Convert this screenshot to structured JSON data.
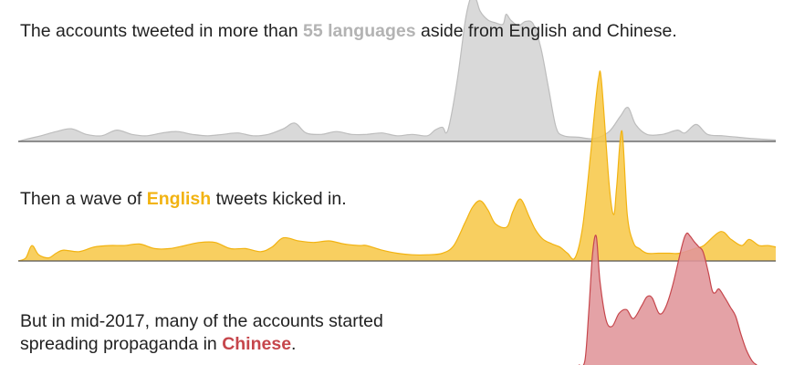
{
  "captions": {
    "other": {
      "pre": "The accounts tweeted in more than ",
      "highlight": "55 languages",
      "post": " aside from English and Chinese.",
      "color": "#b3b3b3"
    },
    "english": {
      "pre": "Then a wave of ",
      "highlight": "English",
      "post": " tweets kicked in.",
      "color": "#f2b311"
    },
    "chinese": {
      "line1": "But in mid-2017, many of the accounts started",
      "pre": "spreading propaganda in ",
      "highlight": "Chinese",
      "post": ".",
      "color": "#c6464c"
    }
  },
  "chart_data": {
    "type": "area",
    "x_range": [
      0,
      100
    ],
    "series": [
      {
        "key": "other",
        "fill": "#d9d9d9",
        "stroke": "#bdbdbd",
        "points": [
          [
            0,
            0
          ],
          [
            1,
            1.5
          ],
          [
            3,
            4
          ],
          [
            5,
            7
          ],
          [
            7,
            9
          ],
          [
            9,
            5
          ],
          [
            11,
            4
          ],
          [
            13,
            8
          ],
          [
            15,
            5
          ],
          [
            17,
            4
          ],
          [
            19,
            6
          ],
          [
            21,
            7
          ],
          [
            23,
            5
          ],
          [
            25,
            4
          ],
          [
            27,
            5
          ],
          [
            29,
            6
          ],
          [
            31,
            4
          ],
          [
            33,
            5
          ],
          [
            35,
            9
          ],
          [
            36.5,
            13
          ],
          [
            38,
            6
          ],
          [
            40,
            5
          ],
          [
            42,
            7
          ],
          [
            44,
            5
          ],
          [
            46,
            5
          ],
          [
            48,
            6
          ],
          [
            50,
            4
          ],
          [
            52,
            5
          ],
          [
            54,
            4
          ],
          [
            55,
            8
          ],
          [
            56,
            10
          ],
          [
            56.5,
            6
          ],
          [
            57,
            14
          ],
          [
            58,
            45
          ],
          [
            59,
            85
          ],
          [
            59.6,
            100
          ],
          [
            60,
            104
          ],
          [
            60.5,
            100
          ],
          [
            61,
            92
          ],
          [
            62,
            86
          ],
          [
            63,
            84
          ],
          [
            64,
            83
          ],
          [
            64.4,
            90
          ],
          [
            65,
            86
          ],
          [
            66,
            82
          ],
          [
            67,
            85
          ],
          [
            68,
            83
          ],
          [
            69,
            66
          ],
          [
            70,
            38
          ],
          [
            71,
            10
          ],
          [
            72,
            4
          ],
          [
            74,
            3
          ],
          [
            76,
            2
          ],
          [
            78,
            7
          ],
          [
            79.5,
            18
          ],
          [
            80.5,
            24
          ],
          [
            81.5,
            12
          ],
          [
            83,
            5
          ],
          [
            85,
            5
          ],
          [
            87,
            8
          ],
          [
            88,
            6
          ],
          [
            89.5,
            12
          ],
          [
            91,
            5
          ],
          [
            93,
            4
          ],
          [
            95,
            3
          ],
          [
            97,
            2
          ],
          [
            100,
            1
          ]
        ],
        "y_max": 104
      },
      {
        "key": "english",
        "fill": "#f7c84a",
        "stroke": "#f2b311",
        "points": [
          [
            0,
            0
          ],
          [
            1,
            2
          ],
          [
            1.8,
            10
          ],
          [
            2.7,
            4
          ],
          [
            4,
            2
          ],
          [
            5,
            5
          ],
          [
            6,
            7
          ],
          [
            8,
            6
          ],
          [
            10,
            9
          ],
          [
            12,
            10
          ],
          [
            14,
            10
          ],
          [
            16,
            11
          ],
          [
            18,
            8
          ],
          [
            20,
            8
          ],
          [
            22,
            10
          ],
          [
            24,
            12
          ],
          [
            26,
            12
          ],
          [
            28,
            8
          ],
          [
            30,
            8
          ],
          [
            32,
            6
          ],
          [
            33.5,
            9
          ],
          [
            35,
            15
          ],
          [
            37,
            13
          ],
          [
            39,
            12
          ],
          [
            41,
            13
          ],
          [
            43,
            11
          ],
          [
            45,
            10
          ],
          [
            46,
            10
          ],
          [
            48,
            7
          ],
          [
            50,
            5
          ],
          [
            52,
            4
          ],
          [
            54,
            4
          ],
          [
            56,
            5
          ],
          [
            57.5,
            10
          ],
          [
            59,
            25
          ],
          [
            60,
            35
          ],
          [
            61,
            39
          ],
          [
            62,
            33
          ],
          [
            63,
            24
          ],
          [
            64.5,
            22
          ],
          [
            65.3,
            32
          ],
          [
            66.3,
            40
          ],
          [
            67.5,
            28
          ],
          [
            68.3,
            20
          ],
          [
            69.3,
            14
          ],
          [
            70.5,
            11
          ],
          [
            71.5,
            9
          ],
          [
            72.5,
            5
          ],
          [
            73.5,
            2
          ],
          [
            74.5,
            22
          ],
          [
            75.5,
            66
          ],
          [
            76,
            92
          ],
          [
            76.6,
            118
          ],
          [
            77,
            116
          ],
          [
            78,
            50
          ],
          [
            78.6,
            30
          ],
          [
            79,
            48
          ],
          [
            79.7,
            84
          ],
          [
            80.4,
            30
          ],
          [
            81.2,
            12
          ],
          [
            82,
            8
          ],
          [
            83,
            5
          ],
          [
            84.5,
            5
          ],
          [
            86,
            5
          ],
          [
            87.3,
            5
          ],
          [
            89.3,
            8
          ],
          [
            90.5,
            10
          ],
          [
            92.7,
            19
          ],
          [
            94.1,
            14
          ],
          [
            95.5,
            10
          ],
          [
            96.5,
            14
          ],
          [
            97.8,
            10
          ],
          [
            99,
            10
          ],
          [
            100,
            9
          ]
        ],
        "y_max": 118
      },
      {
        "key": "chinese",
        "fill": "#e0959a",
        "stroke": "#c6464c",
        "points": [
          [
            74,
            0
          ],
          [
            74.8,
            3
          ],
          [
            75.3,
            40
          ],
          [
            75.8,
            85
          ],
          [
            76.3,
            100
          ],
          [
            76.8,
            65
          ],
          [
            77.6,
            35
          ],
          [
            78.4,
            30
          ],
          [
            79.3,
            40
          ],
          [
            80.3,
            43
          ],
          [
            81.2,
            36
          ],
          [
            82.3,
            46
          ],
          [
            83,
            53
          ],
          [
            83.7,
            52
          ],
          [
            84.6,
            40
          ],
          [
            85.4,
            44
          ],
          [
            86.4,
            62
          ],
          [
            87.6,
            92
          ],
          [
            88.2,
            102
          ],
          [
            88.7,
            100
          ],
          [
            89.2,
            96
          ],
          [
            89.8,
            92
          ],
          [
            90.4,
            88
          ],
          [
            91.1,
            72
          ],
          [
            91.6,
            58
          ],
          [
            92,
            56
          ],
          [
            92.5,
            59
          ],
          [
            93.3,
            52
          ],
          [
            94,
            45
          ],
          [
            94.7,
            38
          ],
          [
            95.4,
            24
          ],
          [
            96.1,
            12
          ],
          [
            96.9,
            3
          ],
          [
            97.5,
            0
          ]
        ],
        "y_max": 102
      }
    ]
  }
}
